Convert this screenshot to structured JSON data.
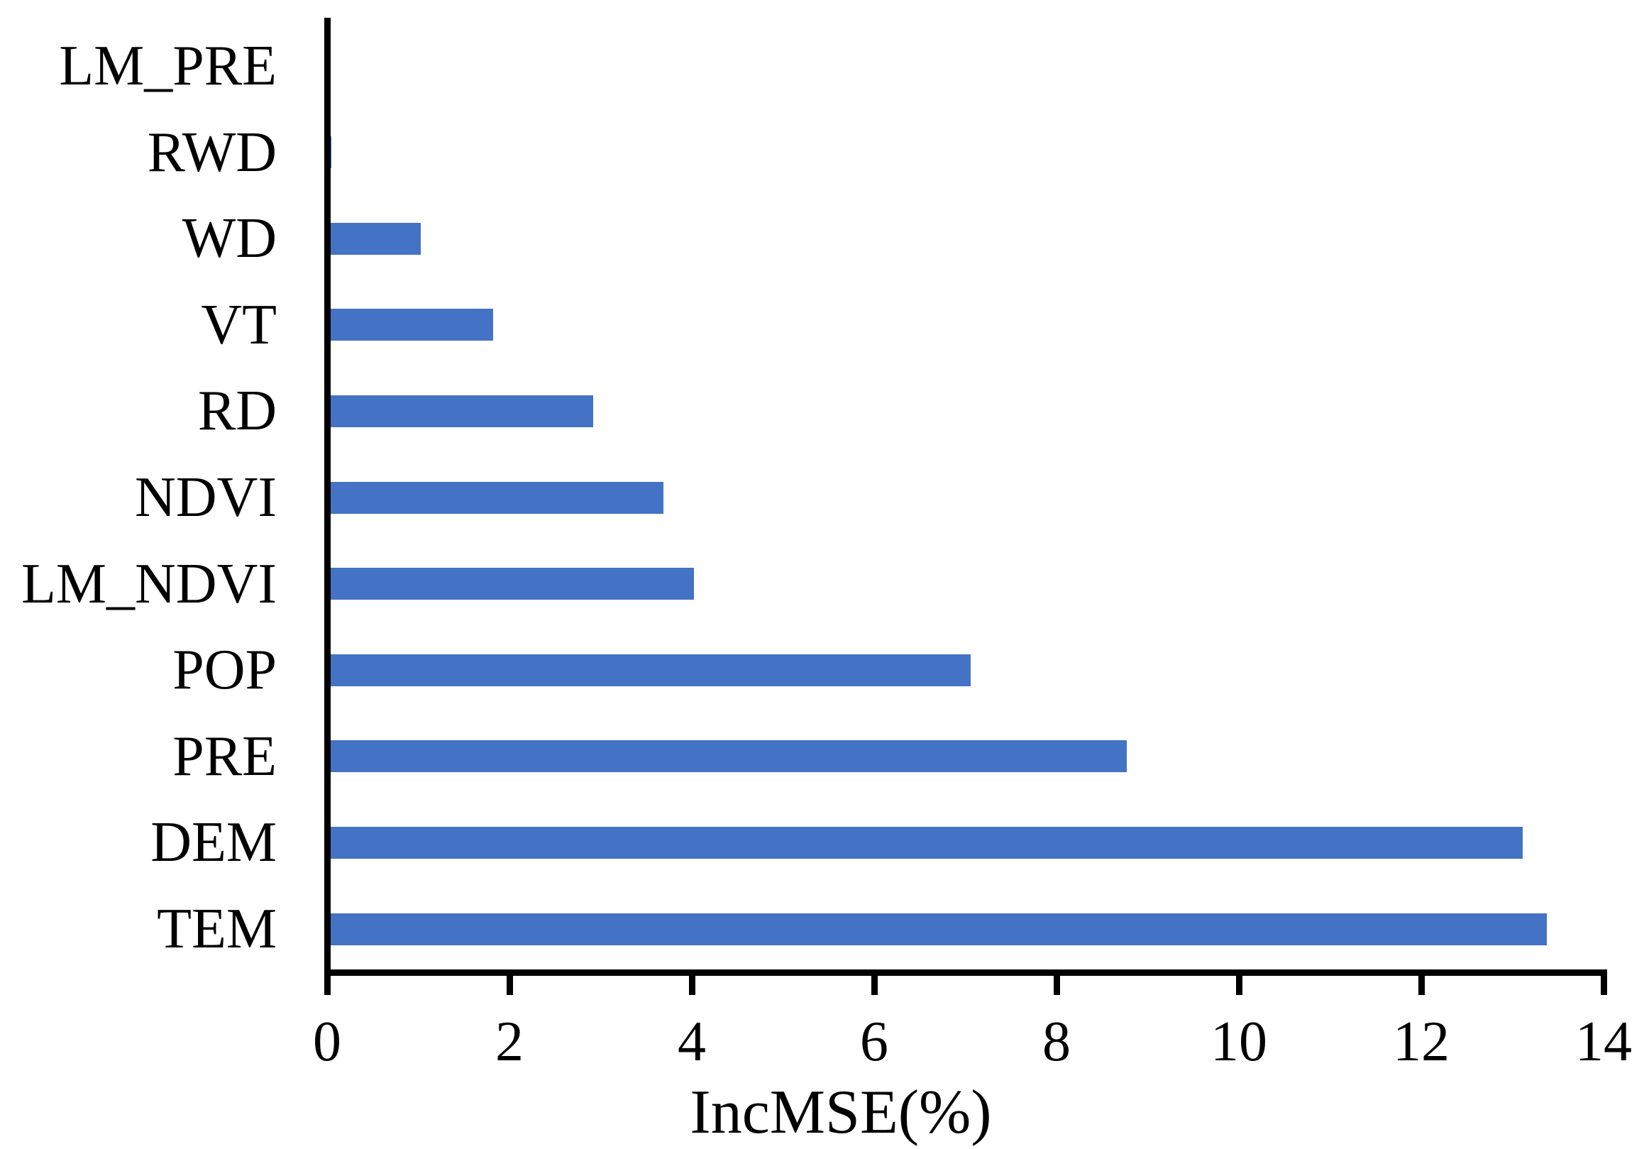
{
  "chart_data": {
    "type": "bar",
    "orientation": "horizontal",
    "title": "",
    "xlabel": "IncMSE(%)",
    "ylabel": "",
    "categories_top_to_bottom": [
      "LM_PRE",
      "RWD",
      "WD",
      "VT",
      "RD",
      "NDVI",
      "LM_NDVI",
      "POP",
      "PRE",
      "DEM",
      "TEM"
    ],
    "values": [
      0.01,
      0.05,
      1.03,
      1.82,
      2.92,
      3.69,
      4.02,
      7.06,
      8.77,
      13.11,
      13.38
    ],
    "xlim": [
      0,
      14
    ],
    "xticks": [
      0,
      2,
      4,
      6,
      8,
      10,
      12,
      14
    ],
    "grid": false,
    "legend": null,
    "bar_color": "#4472C4",
    "axis_color": "#000000",
    "text_color": "#000000"
  }
}
